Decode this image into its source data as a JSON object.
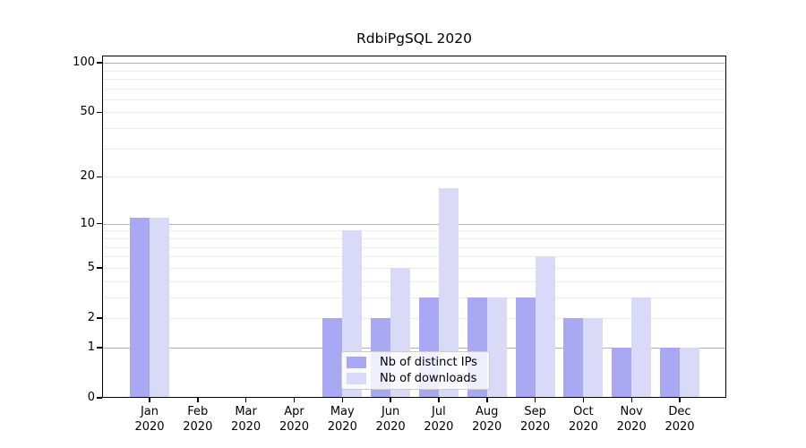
{
  "chart_data": {
    "type": "bar",
    "title": "RdbiPgSQL 2020",
    "scale": "log10(1+y)",
    "grid": "on",
    "legend_position": "lower-center",
    "categories": [
      "Jan",
      "Feb",
      "Mar",
      "Apr",
      "May",
      "Jun",
      "Jul",
      "Aug",
      "Sep",
      "Oct",
      "Nov",
      "Dec"
    ],
    "category_year": "2020",
    "series": [
      {
        "name": "Nb of distinct IPs",
        "color": "#a9a9f3",
        "values": [
          11,
          0,
          0,
          0,
          2,
          2,
          3,
          3,
          3,
          2,
          1,
          1
        ]
      },
      {
        "name": "Nb of downloads",
        "color": "#d9d9f8",
        "values": [
          11,
          0,
          0,
          0,
          9,
          5,
          17,
          3,
          6,
          2,
          3,
          1
        ]
      }
    ],
    "y_tick_labels": [
      "100",
      "50",
      "20",
      "10",
      "5",
      "2",
      "1",
      "0"
    ],
    "y_minor_gridlines": [
      2,
      3,
      4,
      5,
      6,
      7,
      8,
      9,
      20,
      30,
      40,
      50,
      60,
      70,
      80,
      90
    ],
    "y_major_gridlines": [
      1,
      10,
      100
    ],
    "ylim": [
      0,
      110
    ]
  },
  "colors": {
    "bar_dark": "#a9a9f3",
    "bar_light": "#d9d9f8",
    "grid_major": "#b3b3b3",
    "grid_minor": "#ededed",
    "axis": "#000000",
    "background": "#ffffff"
  }
}
